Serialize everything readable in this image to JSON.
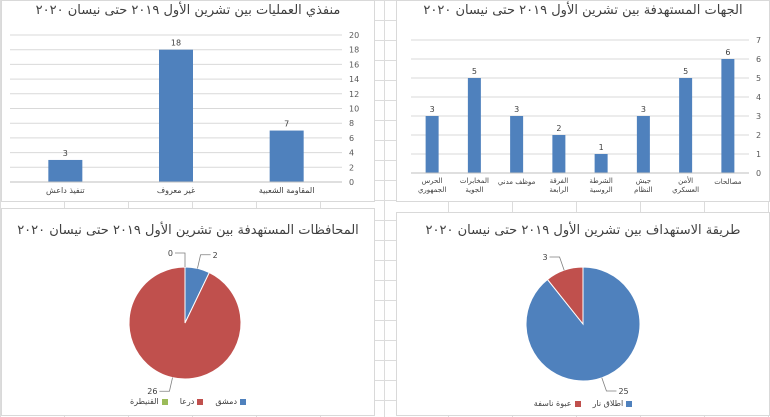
{
  "colors": {
    "bar": "#4f81bd",
    "pie_blue": "#4f81bd",
    "pie_red": "#c0504d",
    "pie_green": "#9bbb59"
  },
  "chart_data": [
    {
      "id": "ops",
      "type": "bar",
      "title": "منفذي العمليات بين تشرين الأول ٢٠١٩ حتى نيسان ٢٠٢٠",
      "categories": [
        "المقاومة الشعبية",
        "غير معروف",
        "تنفيذ داعش"
      ],
      "values": [
        7,
        18,
        3
      ],
      "ylim": [
        0,
        20
      ],
      "yticks": [
        0,
        2,
        4,
        6,
        8,
        10,
        12,
        14,
        16,
        18,
        20
      ],
      "grid": true
    },
    {
      "id": "targets",
      "type": "bar",
      "title": "الجهات المستهدفة بين تشرين الأول ٢٠١٩ حتى نيسان ٢٠٢٠",
      "categories": [
        "مصالحات",
        "الأمن العسكري",
        "جيش النظام",
        "الشرطة الروسية",
        "الفرقة الرابعة",
        "موظف مدني",
        "المخابرات الجوية",
        "الحرس الجمهوري"
      ],
      "values": [
        6,
        5,
        3,
        1,
        2,
        3,
        5,
        3
      ],
      "ylim": [
        0,
        7
      ],
      "yticks": [
        0,
        1,
        2,
        3,
        4,
        5,
        6,
        7
      ],
      "grid": true
    },
    {
      "id": "provinces",
      "type": "pie",
      "title": "المحافظات المستهدفة بين تشرين الأول ٢٠١٩ حتى نيسان ٢٠٢٠",
      "labels": [
        "دمشق",
        "درعا",
        "القنيطرة"
      ],
      "values": [
        2,
        26,
        0
      ],
      "legend": "bottom"
    },
    {
      "id": "method",
      "type": "pie",
      "title": "طريقة الاستهداف بين تشرين الأول ٢٠١٩ حتى نيسان ٢٠٢٠",
      "labels": [
        "اطلاق نار",
        "عبوة ناسفة"
      ],
      "values": [
        25,
        3
      ],
      "legend": "bottom"
    }
  ]
}
